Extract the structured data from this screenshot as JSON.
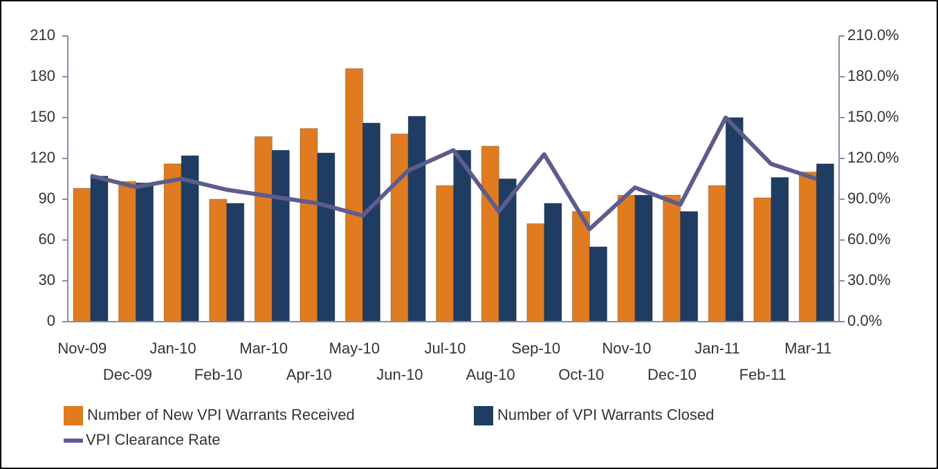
{
  "chart_data": {
    "type": "bar",
    "categories": [
      "Nov-09",
      "Dec-09",
      "Jan-10",
      "Feb-10",
      "Mar-10",
      "Apr-10",
      "May-10",
      "Jun-10",
      "Jul-10",
      "Aug-10",
      "Sep-10",
      "Oct-10",
      "Nov-10",
      "Dec-10",
      "Jan-11",
      "Feb-11",
      "Mar-11"
    ],
    "series": [
      {
        "name": "Number of New VPI Warrants Received",
        "color": "#e07b20",
        "type": "bar",
        "values": [
          98,
          103,
          116,
          90,
          136,
          142,
          186,
          138,
          100,
          129,
          72,
          81,
          93,
          93,
          100,
          91,
          110
        ]
      },
      {
        "name": "Number of VPI Warrants Closed",
        "color": "#1f3d63",
        "type": "bar",
        "values": [
          107,
          102,
          122,
          87,
          126,
          124,
          146,
          151,
          126,
          105,
          87,
          55,
          93,
          81,
          150,
          106,
          116
        ]
      },
      {
        "name": "VPI Clearance Rate",
        "color": "#5c5c8e",
        "type": "line",
        "axis": "y2",
        "values": [
          107.3,
          99,
          105,
          97,
          92,
          87,
          78,
          111,
          126,
          81,
          123,
          68,
          98.6,
          86,
          150,
          116,
          105
        ]
      }
    ],
    "ylim": [
      0,
      210
    ],
    "yticks": [
      0,
      30,
      60,
      90,
      120,
      150,
      180,
      210
    ],
    "y2lim": [
      0,
      210
    ],
    "y2ticks": [
      {
        "value": 0,
        "label": "0.0%"
      },
      {
        "value": 30,
        "label": "30.0%"
      },
      {
        "value": 60,
        "label": "60.0%"
      },
      {
        "value": 90,
        "label": "90.0%"
      },
      {
        "value": 120,
        "label": "120.0%"
      },
      {
        "value": 150,
        "label": "150.0%"
      },
      {
        "value": 180,
        "label": "180.0%"
      },
      {
        "value": 210,
        "label": "210.0%"
      }
    ]
  }
}
